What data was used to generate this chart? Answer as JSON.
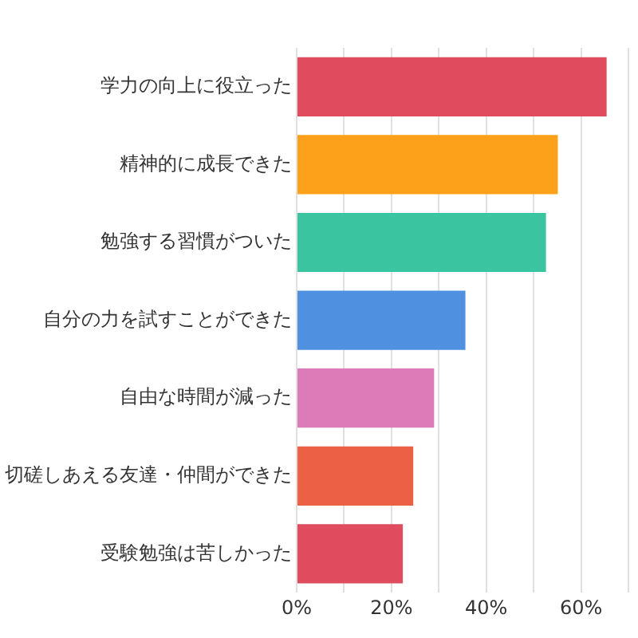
{
  "chart_data": {
    "type": "bar",
    "orientation": "horizontal",
    "categories": [
      "学力の向上に役立った",
      "精神的に成長できた",
      "勉強する習慣がついた",
      "自分の力を試すことができた",
      "自由な時間が減った",
      "切磋しあえる友達・仲間ができた",
      "受験勉強は苦しかった"
    ],
    "values": [
      65.4,
      55.1,
      52.6,
      35.6,
      29,
      24.6,
      22.4
    ],
    "colors": [
      "#e04c5e",
      "#fda11a",
      "#3bc4a0",
      "#4f90e0",
      "#dd7bb8",
      "#ec6045",
      "#e04c5e"
    ],
    "xlim": [
      0,
      70
    ],
    "xticks": [
      {
        "value": 0,
        "label": "0%"
      },
      {
        "value": 10,
        "label": null
      },
      {
        "value": 20,
        "label": "20%"
      },
      {
        "value": 30,
        "label": null
      },
      {
        "value": 40,
        "label": "40%"
      },
      {
        "value": 50,
        "label": null
      },
      {
        "value": 60,
        "label": "60%"
      },
      {
        "value": 70,
        "label": null
      }
    ],
    "grid": "x",
    "legend": false
  }
}
